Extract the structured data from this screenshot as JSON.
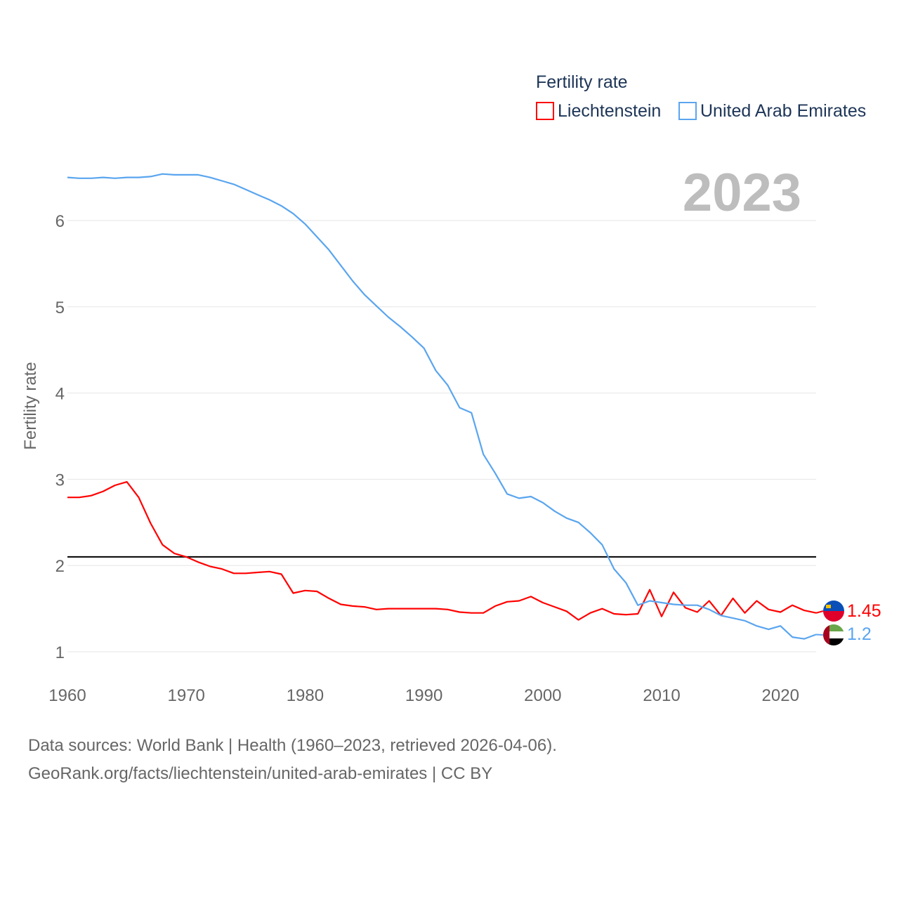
{
  "chart_data": {
    "type": "line",
    "ylabel": "Fertility rate",
    "xlabel": "",
    "legend_title": "Fertility rate",
    "legend_position": "top-right",
    "year_label": "2023",
    "xlim": [
      1960,
      2023
    ],
    "ylim": [
      0.8,
      6.6
    ],
    "xticks": [
      1960,
      1970,
      1980,
      1990,
      2000,
      2010,
      2020
    ],
    "yticks": [
      1,
      2,
      3,
      4,
      5,
      6
    ],
    "grid": true,
    "reference_line": 2.1,
    "x": [
      1960,
      1961,
      1962,
      1963,
      1964,
      1965,
      1966,
      1967,
      1968,
      1969,
      1970,
      1971,
      1972,
      1973,
      1974,
      1975,
      1976,
      1977,
      1978,
      1979,
      1980,
      1981,
      1982,
      1983,
      1984,
      1985,
      1986,
      1987,
      1988,
      1989,
      1990,
      1991,
      1992,
      1993,
      1994,
      1995,
      1996,
      1997,
      1998,
      1999,
      2000,
      2001,
      2002,
      2003,
      2004,
      2005,
      2006,
      2007,
      2008,
      2009,
      2010,
      2011,
      2012,
      2013,
      2014,
      2015,
      2016,
      2017,
      2018,
      2019,
      2020,
      2021,
      2022,
      2023
    ],
    "series": [
      {
        "name": "Liechtenstein",
        "color": "#ff0000",
        "end_label": "1.45",
        "values": [
          2.79,
          2.79,
          2.81,
          2.86,
          2.93,
          2.97,
          2.79,
          2.49,
          2.24,
          2.14,
          2.1,
          2.04,
          1.99,
          1.96,
          1.91,
          1.91,
          1.92,
          1.93,
          1.9,
          1.68,
          1.71,
          1.7,
          1.62,
          1.55,
          1.53,
          1.52,
          1.49,
          1.5,
          1.5,
          1.5,
          1.5,
          1.5,
          1.49,
          1.46,
          1.45,
          1.45,
          1.53,
          1.58,
          1.59,
          1.64,
          1.57,
          1.52,
          1.47,
          1.37,
          1.45,
          1.5,
          1.44,
          1.43,
          1.44,
          1.72,
          1.41,
          1.69,
          1.51,
          1.46,
          1.59,
          1.42,
          1.62,
          1.45,
          1.59,
          1.49,
          1.46,
          1.54,
          1.48,
          1.45
        ]
      },
      {
        "name": "United Arab Emirates",
        "color": "#5aa5ef",
        "end_label": "1.2",
        "values": [
          6.5,
          6.49,
          6.49,
          6.5,
          6.49,
          6.5,
          6.5,
          6.51,
          6.54,
          6.53,
          6.53,
          6.53,
          6.5,
          6.46,
          6.42,
          6.36,
          6.3,
          6.24,
          6.17,
          6.08,
          5.96,
          5.81,
          5.66,
          5.48,
          5.3,
          5.14,
          5.01,
          4.88,
          4.77,
          4.65,
          4.52,
          4.26,
          4.09,
          3.83,
          3.77,
          3.29,
          3.07,
          2.83,
          2.78,
          2.8,
          2.73,
          2.63,
          2.55,
          2.5,
          2.38,
          2.24,
          1.96,
          1.8,
          1.54,
          1.59,
          1.57,
          1.55,
          1.54,
          1.54,
          1.49,
          1.42,
          1.39,
          1.36,
          1.3,
          1.26,
          1.3,
          1.17,
          1.15,
          1.2
        ]
      }
    ]
  },
  "footer": {
    "line1": "Data sources: World Bank | Health (1960–2023, retrieved 2026-04-06).",
    "line2": "GeoRank.org/facts/liechtenstein/united-arab-emirates | CC BY"
  }
}
